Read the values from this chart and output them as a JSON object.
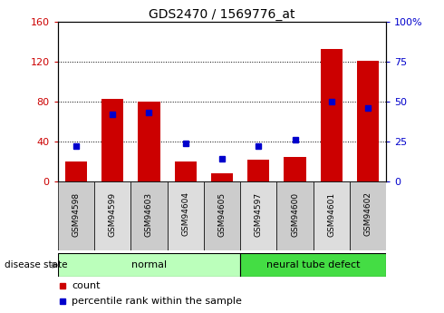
{
  "title": "GDS2470 / 1569776_at",
  "samples": [
    "GSM94598",
    "GSM94599",
    "GSM94603",
    "GSM94604",
    "GSM94605",
    "GSM94597",
    "GSM94600",
    "GSM94601",
    "GSM94602"
  ],
  "counts": [
    20,
    83,
    80,
    20,
    8,
    22,
    25,
    133,
    121
  ],
  "percentiles": [
    22,
    42,
    43,
    24,
    14,
    22,
    26,
    50,
    46
  ],
  "groups": [
    {
      "label": "normal",
      "start": 0,
      "end": 5
    },
    {
      "label": "neural tube defect",
      "start": 5,
      "end": 9
    }
  ],
  "left_ylim": [
    0,
    160
  ],
  "right_ylim": [
    0,
    100
  ],
  "left_yticks": [
    0,
    40,
    80,
    120,
    160
  ],
  "right_yticks": [
    0,
    25,
    50,
    75,
    100
  ],
  "right_yticklabels": [
    "0",
    "25",
    "50",
    "75",
    "100%"
  ],
  "left_ycolor": "#CC0000",
  "right_ycolor": "#0000CC",
  "bar_color": "#CC0000",
  "dot_color": "#0000CC",
  "bg_color": "#FFFFFF",
  "legend_count_label": "count",
  "legend_pct_label": "percentile rank within the sample",
  "disease_state_label": "disease state",
  "normal_group_color": "#BBFFBB",
  "ntd_group_color": "#44DD44",
  "xticklabel_bg": "#CCCCCC",
  "xticklabel_bg2": "#DDDDDD"
}
